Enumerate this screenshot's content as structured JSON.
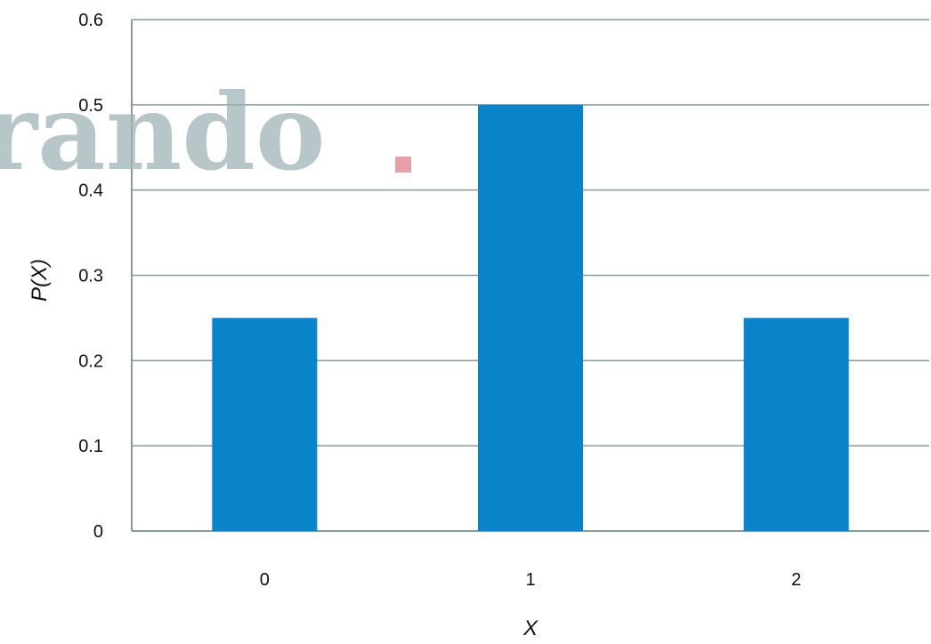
{
  "watermark": {
    "text": "rando",
    "colors": {
      "text": "#9fb3b8",
      "dot": "#e8a0a8"
    }
  },
  "chart_data": {
    "type": "bar",
    "categories": [
      "0",
      "1",
      "2"
    ],
    "values": [
      0.25,
      0.5,
      0.25
    ],
    "title": "",
    "xlabel": "X",
    "ylabel": "P(X)",
    "ylim": [
      0,
      0.6
    ],
    "yticks": [
      "0",
      "0.1",
      "0.2",
      "0.3",
      "0.4",
      "0.5",
      "0.6"
    ],
    "grid": true,
    "legend": "none",
    "colors": {
      "bar": "#0a84c8",
      "grid": "#8a9a9a",
      "axis": "#8a9a9a"
    }
  }
}
